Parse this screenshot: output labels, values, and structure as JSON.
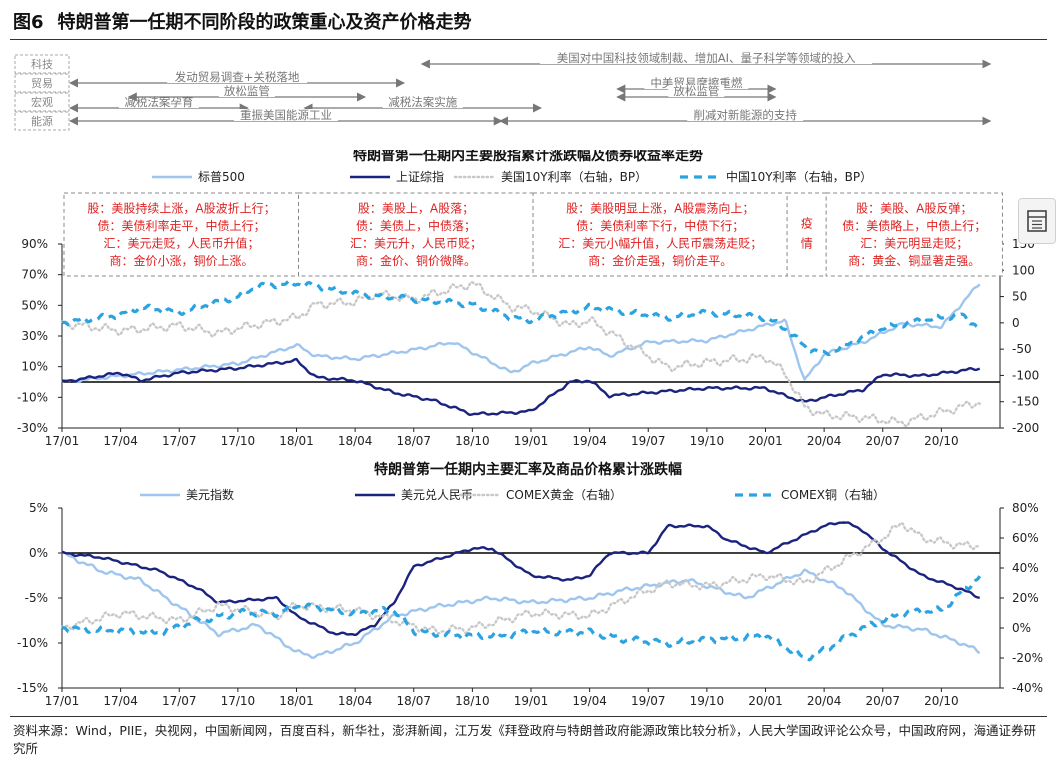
{
  "figure": {
    "number": "图6",
    "title": "特朗普第一任期不同阶段的政策重心及资产价格走势"
  },
  "timeline": {
    "categories": [
      "科技",
      "贸易",
      "宏观",
      "能源"
    ],
    "rows": [
      {
        "category": "科技",
        "events": [
          {
            "label": "美国对中国科技领域制裁、增加AI、量子科学等领域的投入",
            "from": "18/07",
            "to": "20/12"
          }
        ]
      },
      {
        "category": "贸易",
        "events": [
          {
            "label": "发动贸易调查+关税落地",
            "from": "17/01",
            "to": "18/06"
          },
          {
            "label": "中美贸易摩擦重燃",
            "from": "19/05",
            "to": "20/01"
          }
        ]
      },
      {
        "category": "宏观",
        "events": [
          {
            "label": "减税法案孕育",
            "from": "17/01",
            "to": "17/10"
          },
          {
            "label": "放松监管",
            "from": "17/04",
            "to": "18/04"
          },
          {
            "label": "减税法案实施",
            "from": "18/01",
            "to": "19/01"
          },
          {
            "label": "放松监管",
            "from": "19/05",
            "to": "20/01"
          }
        ]
      },
      {
        "category": "能源",
        "events": [
          {
            "label": "重振美国能源工业",
            "from": "17/01",
            "to": "18/11"
          },
          {
            "label": "削减对新能源的支持",
            "from": "18/11",
            "to": "20/12"
          }
        ]
      }
    ]
  },
  "chart_data": [
    {
      "type": "line",
      "title": "特朗普第一任期内主要股指累计涨跌幅及债券收益率走势",
      "x_ticks": [
        "17/01",
        "17/04",
        "17/07",
        "17/10",
        "18/01",
        "18/04",
        "18/07",
        "18/10",
        "19/01",
        "19/04",
        "19/07",
        "19/10",
        "20/01",
        "20/04",
        "20/07",
        "20/10"
      ],
      "y_left": {
        "min": -30,
        "max": 90,
        "ticks": [
          "90%",
          "70%",
          "50%",
          "30%",
          "10%",
          "-10%",
          "-30%"
        ],
        "unit": "%"
      },
      "y_right": {
        "min": -200,
        "max": 150,
        "ticks": [
          "150",
          "100",
          "50",
          "0",
          "-50",
          "-100",
          "-150",
          "-200"
        ],
        "unit": "BP"
      },
      "legend_position": "top",
      "series": [
        {
          "name": "标普500",
          "axis": "left",
          "color": "#9ec5ee",
          "style": "solid",
          "points": [
            [
              "17/01",
              0
            ],
            [
              "17/04",
              4
            ],
            [
              "17/07",
              8
            ],
            [
              "17/10",
              12
            ],
            [
              "18/01",
              24
            ],
            [
              "18/02",
              17
            ],
            [
              "18/04",
              15
            ],
            [
              "18/07",
              21
            ],
            [
              "18/09",
              26
            ],
            [
              "18/12",
              6
            ],
            [
              "19/01",
              12
            ],
            [
              "19/04",
              23
            ],
            [
              "19/05",
              17
            ],
            [
              "19/07",
              26
            ],
            [
              "19/10",
              27
            ],
            [
              "20/01",
              37
            ],
            [
              "20/02",
              40
            ],
            [
              "20/03",
              1
            ],
            [
              "20/04",
              18
            ],
            [
              "20/06",
              26
            ],
            [
              "20/08",
              38
            ],
            [
              "20/10",
              36
            ],
            [
              "20/12",
              65
            ]
          ]
        },
        {
          "name": "上证综指",
          "axis": "left",
          "color": "#1a237e",
          "style": "solid",
          "points": [
            [
              "17/01",
              0
            ],
            [
              "17/04",
              6
            ],
            [
              "17/05",
              1
            ],
            [
              "17/07",
              6
            ],
            [
              "17/10",
              9
            ],
            [
              "18/01",
              14
            ],
            [
              "18/02",
              3
            ],
            [
              "18/04",
              1
            ],
            [
              "18/06",
              -7
            ],
            [
              "18/08",
              -12
            ],
            [
              "18/10",
              -21
            ],
            [
              "18/12",
              -20
            ],
            [
              "19/01",
              -19
            ],
            [
              "19/03",
              0
            ],
            [
              "19/04",
              1
            ],
            [
              "19/05",
              -9
            ],
            [
              "19/07",
              -7
            ],
            [
              "19/10",
              -4
            ],
            [
              "20/01",
              -4
            ],
            [
              "20/02",
              -9
            ],
            [
              "20/03",
              -13
            ],
            [
              "20/04",
              -10
            ],
            [
              "20/06",
              -5
            ],
            [
              "20/07",
              5
            ],
            [
              "20/09",
              4
            ],
            [
              "20/12",
              9
            ]
          ]
        },
        {
          "name": "美国10Y利率（右轴，BP）",
          "axis": "right",
          "color": "#c8c8c8",
          "style": "dotted",
          "points": [
            [
              "17/01",
              0
            ],
            [
              "17/04",
              -15
            ],
            [
              "17/07",
              -5
            ],
            [
              "17/09",
              -20
            ],
            [
              "17/10",
              -10
            ],
            [
              "18/01",
              10
            ],
            [
              "18/02",
              35
            ],
            [
              "18/04",
              40
            ],
            [
              "18/05",
              55
            ],
            [
              "18/07",
              45
            ],
            [
              "18/10",
              75
            ],
            [
              "18/12",
              30
            ],
            [
              "19/01",
              25
            ],
            [
              "19/03",
              -5
            ],
            [
              "19/04",
              5
            ],
            [
              "19/06",
              -40
            ],
            [
              "19/08",
              -85
            ],
            [
              "19/10",
              -75
            ],
            [
              "20/01",
              -65
            ],
            [
              "20/02",
              -95
            ],
            [
              "20/03",
              -160
            ],
            [
              "20/04",
              -175
            ],
            [
              "20/06",
              -180
            ],
            [
              "20/08",
              -190
            ],
            [
              "20/10",
              -170
            ],
            [
              "20/12",
              -150
            ]
          ]
        },
        {
          "name": "中国10Y利率（右轴，BP）",
          "axis": "right",
          "color": "#2ba3e0",
          "style": "dashed",
          "points": [
            [
              "17/01",
              0
            ],
            [
              "17/04",
              15
            ],
            [
              "17/05",
              30
            ],
            [
              "17/07",
              20
            ],
            [
              "17/10",
              50
            ],
            [
              "17/11",
              70
            ],
            [
              "18/01",
              75
            ],
            [
              "18/02",
              70
            ],
            [
              "18/04",
              55
            ],
            [
              "18/07",
              45
            ],
            [
              "18/10",
              35
            ],
            [
              "18/12",
              10
            ],
            [
              "19/01",
              5
            ],
            [
              "19/04",
              30
            ],
            [
              "19/06",
              20
            ],
            [
              "19/08",
              10
            ],
            [
              "19/10",
              20
            ],
            [
              "20/01",
              10
            ],
            [
              "20/02",
              -10
            ],
            [
              "20/03",
              -45
            ],
            [
              "20/04",
              -60
            ],
            [
              "20/05",
              -45
            ],
            [
              "20/07",
              -10
            ],
            [
              "20/09",
              5
            ],
            [
              "20/11",
              15
            ],
            [
              "20/12",
              -10
            ]
          ]
        }
      ],
      "annotations": [
        {
          "from": "17/01",
          "to": "17/12",
          "lines": [
            "股：美股持续上涨，A股波折上行；",
            "债：美债利率走平，中债上行；",
            "汇：美元走贬，人民币升值；",
            "商：金价小涨，铜价上涨。"
          ]
        },
        {
          "from": "18/01",
          "to": "18/12",
          "lines": [
            "股：美股上，A股落；",
            "债：美债上，中债落；",
            "汇：美元升，人民币贬；",
            "商：金价、铜价微降。"
          ]
        },
        {
          "from": "19/01",
          "to": "20/01",
          "lines": [
            "股：美股明显上涨，A股震荡向上；",
            "债：美债利率下行，中债下行；",
            "汇：美元小幅升值，人民币震荡走贬；",
            "商：金价走强，铜价走平。"
          ]
        },
        {
          "from": "20/02",
          "to": "20/03",
          "lines": [
            "疫",
            "情"
          ]
        },
        {
          "from": "20/04",
          "to": "20/12",
          "lines": [
            "股：美股、A股反弹；",
            "债：美债略上，中债上行；",
            "汇：美元明显走贬；",
            "商：黄金、铜显著走强。"
          ]
        }
      ]
    },
    {
      "type": "line",
      "title": "特朗普第一任期内主要汇率及商品价格累计涨跌幅",
      "x_ticks": [
        "17/01",
        "17/04",
        "17/07",
        "17/10",
        "18/01",
        "18/04",
        "18/07",
        "18/10",
        "19/01",
        "19/04",
        "19/07",
        "19/10",
        "20/01",
        "20/04",
        "20/07",
        "20/10"
      ],
      "y_left": {
        "min": -15,
        "max": 5,
        "ticks": [
          "5%",
          "0%",
          "-5%",
          "-10%",
          "-15%"
        ],
        "unit": "%"
      },
      "y_right": {
        "min": -40,
        "max": 80,
        "ticks": [
          "80%",
          "60%",
          "40%",
          "20%",
          "0%",
          "-20%",
          "-40%"
        ],
        "unit": "%"
      },
      "legend_position": "top",
      "series": [
        {
          "name": "美元指数",
          "axis": "left",
          "color": "#9ec5ee",
          "style": "solid",
          "points": [
            [
              "17/01",
              0
            ],
            [
              "17/03",
              -2
            ],
            [
              "17/05",
              -3
            ],
            [
              "17/07",
              -6
            ],
            [
              "17/09",
              -9
            ],
            [
              "17/11",
              -8
            ],
            [
              "18/01",
              -11
            ],
            [
              "18/02",
              -11.5
            ],
            [
              "18/04",
              -10
            ],
            [
              "18/06",
              -7
            ],
            [
              "18/08",
              -6
            ],
            [
              "18/11",
              -5
            ],
            [
              "19/01",
              -5.5
            ],
            [
              "19/04",
              -5
            ],
            [
              "19/06",
              -4
            ],
            [
              "19/09",
              -3
            ],
            [
              "19/12",
              -5
            ],
            [
              "20/02",
              -3
            ],
            [
              "20/03",
              -2
            ],
            [
              "20/05",
              -4
            ],
            [
              "20/07",
              -8
            ],
            [
              "20/09",
              -8.5
            ],
            [
              "20/11",
              -10
            ],
            [
              "20/12",
              -11
            ]
          ]
        },
        {
          "name": "美元兑人民币",
          "axis": "left",
          "color": "#1a237e",
          "style": "solid",
          "points": [
            [
              "17/01",
              0
            ],
            [
              "17/03",
              -0.5
            ],
            [
              "17/05",
              -1.5
            ],
            [
              "17/06",
              -2
            ],
            [
              "17/08",
              -4
            ],
            [
              "17/09",
              -5.5
            ],
            [
              "17/12",
              -5
            ],
            [
              "18/01",
              -7
            ],
            [
              "18/03",
              -9
            ],
            [
              "18/04",
              -9
            ],
            [
              "18/05",
              -8
            ],
            [
              "18/06",
              -5.5
            ],
            [
              "18/07",
              -1.5
            ],
            [
              "18/10",
              0.5
            ],
            [
              "18/11",
              0.5
            ],
            [
              "19/01",
              -2.5
            ],
            [
              "19/03",
              -3
            ],
            [
              "19/04",
              -2.5
            ],
            [
              "19/05",
              0
            ],
            [
              "19/07",
              0
            ],
            [
              "19/08",
              3
            ],
            [
              "19/10",
              3
            ],
            [
              "19/11",
              1.5
            ],
            [
              "20/01",
              0
            ],
            [
              "20/02",
              1
            ],
            [
              "20/04",
              3
            ],
            [
              "20/05",
              3.5
            ],
            [
              "20/06",
              2.5
            ],
            [
              "20/07",
              0.5
            ],
            [
              "20/08",
              -1
            ],
            [
              "20/09",
              -2.5
            ],
            [
              "20/11",
              -4
            ],
            [
              "20/12",
              -5
            ]
          ]
        },
        {
          "name": "COMEX黄金（右轴）",
          "axis": "right",
          "color": "#c8c8c8",
          "style": "dotted",
          "points": [
            [
              "17/01",
              0
            ],
            [
              "17/04",
              10
            ],
            [
              "17/07",
              5
            ],
            [
              "17/09",
              15
            ],
            [
              "17/12",
              8
            ],
            [
              "18/01",
              15
            ],
            [
              "18/04",
              12
            ],
            [
              "18/08",
              -2
            ],
            [
              "18/10",
              0
            ],
            [
              "19/01",
              10
            ],
            [
              "19/04",
              8
            ],
            [
              "19/06",
              20
            ],
            [
              "19/08",
              30
            ],
            [
              "19/10",
              28
            ],
            [
              "20/01",
              35
            ],
            [
              "20/03",
              30
            ],
            [
              "20/05",
              45
            ],
            [
              "20/07",
              60
            ],
            [
              "20/08",
              70
            ],
            [
              "20/09",
              60
            ],
            [
              "20/11",
              55
            ],
            [
              "20/12",
              55
            ]
          ]
        },
        {
          "name": "COMEX铜（右轴）",
          "axis": "right",
          "color": "#2ba3e0",
          "style": "dashed",
          "points": [
            [
              "17/01",
              0
            ],
            [
              "17/04",
              -2
            ],
            [
              "17/06",
              -3
            ],
            [
              "17/08",
              5
            ],
            [
              "17/10",
              10
            ],
            [
              "17/12",
              10
            ],
            [
              "18/01",
              15
            ],
            [
              "18/04",
              10
            ],
            [
              "18/06",
              12
            ],
            [
              "18/07",
              -2
            ],
            [
              "18/09",
              -5
            ],
            [
              "18/12",
              -5
            ],
            [
              "19/01",
              -2
            ],
            [
              "19/04",
              -3
            ],
            [
              "19/06",
              -8
            ],
            [
              "19/08",
              -10
            ],
            [
              "19/10",
              -8
            ],
            [
              "20/01",
              -5
            ],
            [
              "20/03",
              -20
            ],
            [
              "20/04",
              -15
            ],
            [
              "20/06",
              0
            ],
            [
              "20/08",
              10
            ],
            [
              "20/10",
              12
            ],
            [
              "20/12",
              35
            ]
          ]
        }
      ]
    }
  ],
  "source": "资料来源：Wind，PIIE，央视网，中国新闻网，百度百科，新华社，澎湃新闻，江万发《拜登政府与特朗普政府能源政策比较分析》，人民大学国政评论公众号，中国政府网，海通证券研究所"
}
